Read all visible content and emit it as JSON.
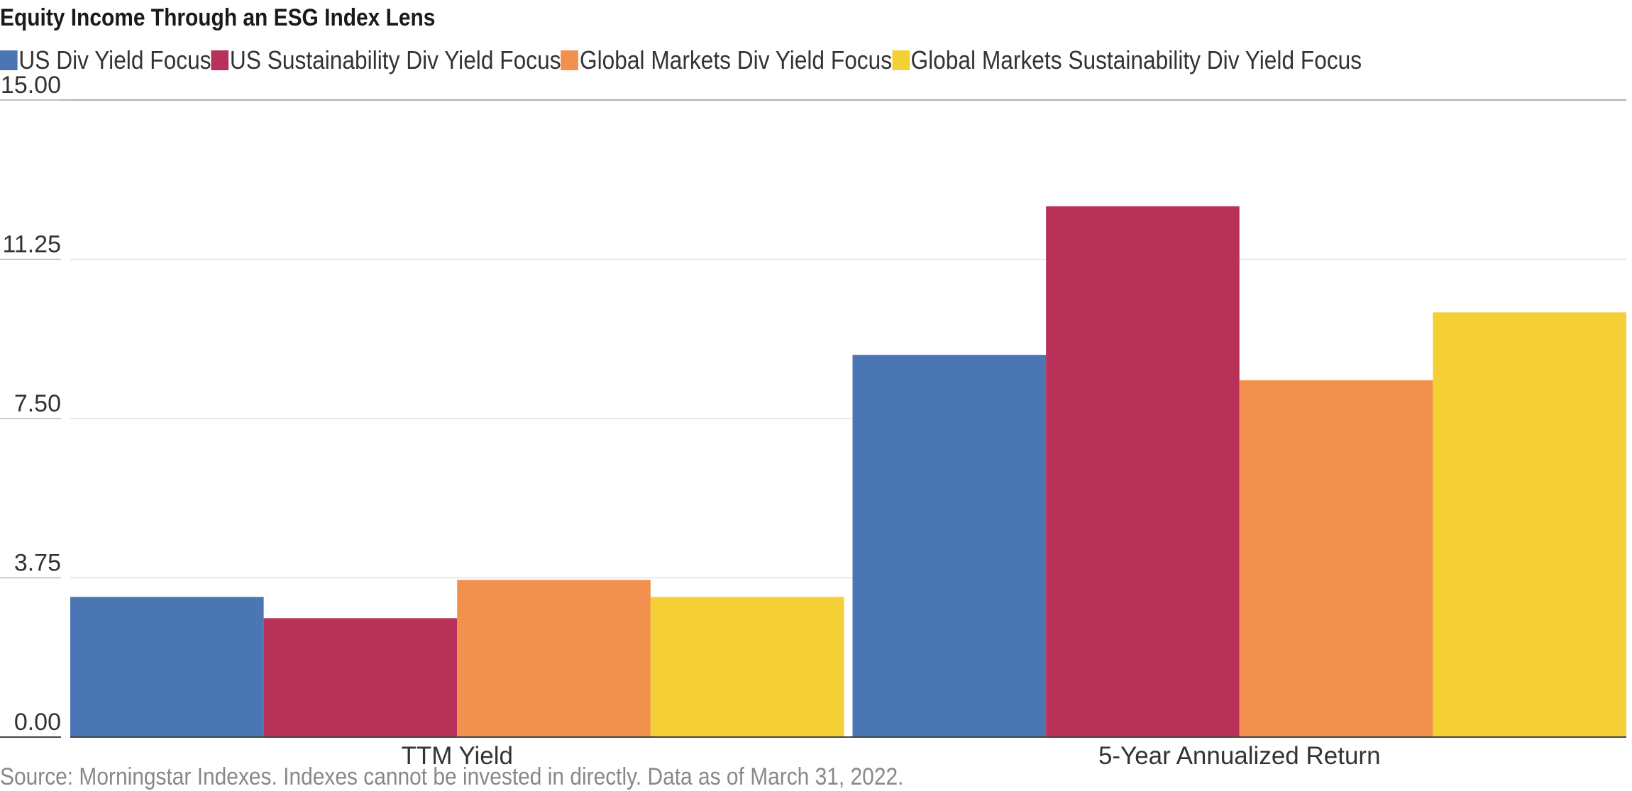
{
  "chart_data": {
    "type": "bar",
    "title": "Equity Income Through an ESG Index Lens",
    "xlabel": "",
    "ylabel": "",
    "categories": [
      "TTM Yield",
      "5-Year Annualized Return"
    ],
    "series": [
      {
        "name": "US Div Yield Focus",
        "color": "#4a77b4",
        "values": [
          3.3,
          9.0
        ]
      },
      {
        "name": "US Sustainability Div Yield Focus",
        "color": "#b83158",
        "values": [
          2.8,
          12.5
        ]
      },
      {
        "name": "Global Markets Div Yield Focus",
        "color": "#f2904e",
        "values": [
          3.7,
          8.4
        ]
      },
      {
        "name": "Global Markets Sustainability Div Yield Focus",
        "color": "#f5cf36",
        "values": [
          3.3,
          10.0
        ]
      }
    ],
    "yticks": [
      "0.00",
      "3.75",
      "7.50",
      "11.25",
      "15.00"
    ],
    "ylim": [
      0,
      15
    ],
    "grid": true,
    "legend_position": "top-left",
    "source": "Source: Morningstar Indexes. Indexes cannot be invested in directly. Data as of March 31, 2022."
  }
}
